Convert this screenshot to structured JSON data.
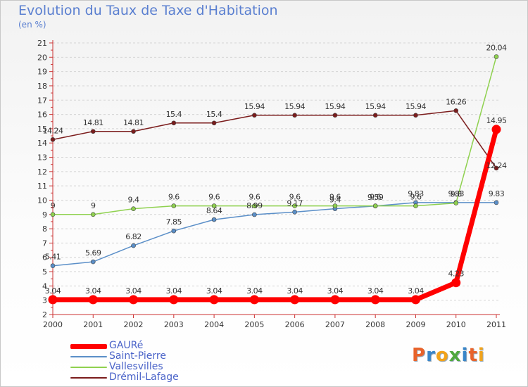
{
  "title": "Evolution du Taux de Taxe d'Habitation",
  "subtitle": "(en %)",
  "chart_data": {
    "type": "line",
    "title": "Evolution du Taux de Taxe d'Habitation",
    "ylabel": "(en %)",
    "xlabel": "",
    "x": [
      "2000",
      "2001",
      "2002",
      "2003",
      "2004",
      "2005",
      "2006",
      "2007",
      "2008",
      "2009",
      "2010",
      "2011"
    ],
    "ylim": [
      2,
      21
    ],
    "yticks": [
      2,
      3,
      4,
      5,
      6,
      7,
      8,
      9,
      10,
      11,
      12,
      13,
      14,
      15,
      16,
      17,
      18,
      19,
      20,
      21
    ],
    "grid": "dashed horizontal",
    "legend_position": "bottom-left",
    "series": [
      {
        "name": "GAURé",
        "color": "#ff0000",
        "values": [
          3.04,
          3.04,
          3.04,
          3.04,
          3.04,
          3.04,
          3.04,
          3.04,
          3.04,
          3.04,
          4.23,
          14.95
        ],
        "labels": [
          "3.04",
          "3.04",
          "3.04",
          "3.04",
          "3.04",
          "3.04",
          "3.04",
          "3.04",
          "3.04",
          "3.04",
          "4.23",
          "14.95"
        ]
      },
      {
        "name": "Saint-Pierre",
        "color": "#5b8fc8",
        "values": [
          5.41,
          5.69,
          6.82,
          7.85,
          8.64,
          8.99,
          9.17,
          9.4,
          9.59,
          9.83,
          9.83,
          9.83
        ],
        "labels": [
          "5.41",
          "5.69",
          "6.82",
          "7.85",
          "8.64",
          "8.99",
          "9.17",
          "9.4",
          "9.59",
          "9.83",
          "9.83",
          "9.83"
        ]
      },
      {
        "name": "Vallesvilles",
        "color": "#8fd14f",
        "values": [
          9,
          9,
          9.4,
          9.6,
          9.6,
          9.6,
          9.6,
          9.6,
          9.6,
          9.6,
          9.8,
          20.04
        ],
        "labels": [
          "9",
          "9",
          "9.4",
          "9.6",
          "9.6",
          "9.6",
          "9.6",
          "9.6",
          "9.6",
          "9.6",
          "9.8",
          "20.04"
        ]
      },
      {
        "name": "Drémil-Lafage",
        "color": "#7b1c1c",
        "values": [
          14.24,
          14.81,
          14.81,
          15.4,
          15.4,
          15.94,
          15.94,
          15.94,
          15.94,
          15.94,
          16.26,
          12.24
        ],
        "labels": [
          "14.24",
          "14.81",
          "14.81",
          "15.4",
          "15.4",
          "15.94",
          "15.94",
          "15.94",
          "15.94",
          "15.94",
          "16.26",
          "12.24"
        ]
      }
    ]
  },
  "legend": {
    "items": [
      {
        "label": "GAURé",
        "color": "#ff0000"
      },
      {
        "label": "Saint-Pierre",
        "color": "#5b8fc8"
      },
      {
        "label": "Vallesvilles",
        "color": "#8fd14f"
      },
      {
        "label": "Drémil-Lafage",
        "color": "#7b1c1c"
      }
    ]
  },
  "logo": {
    "text": "Proxiti",
    "colors": [
      "#e8632b",
      "#3a86c8",
      "#f2a31a",
      "#4fa83d",
      "#3a86c8",
      "#e8632b",
      "#f2a31a"
    ]
  }
}
